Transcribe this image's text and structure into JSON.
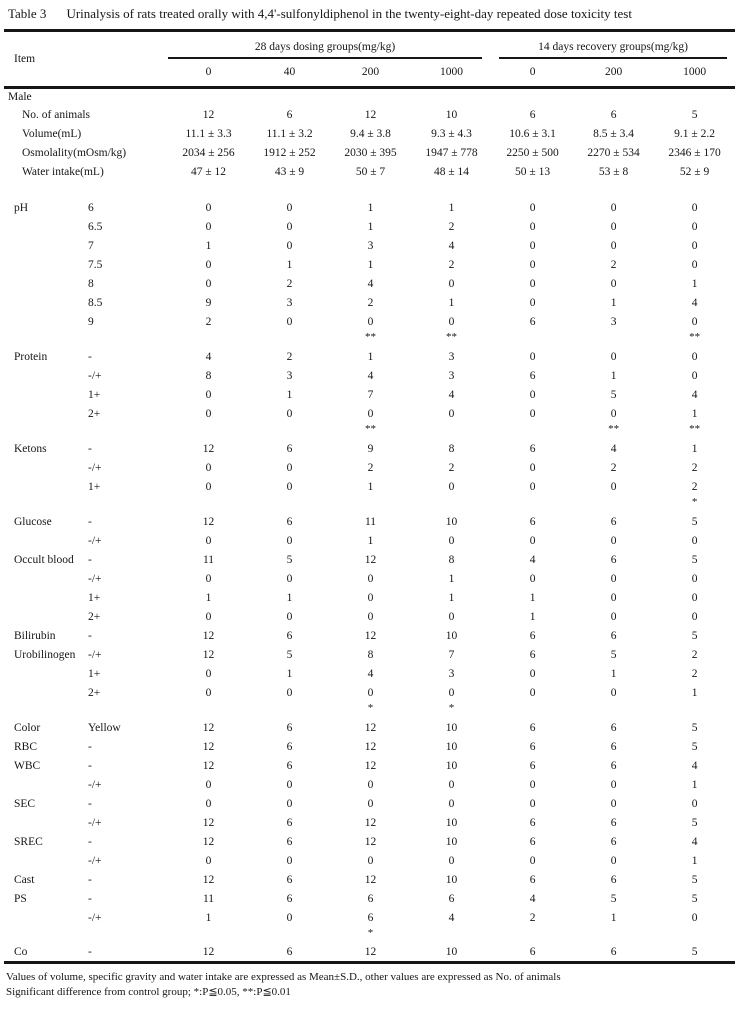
{
  "title": {
    "label": "Table 3",
    "text": "Urinalysis of rats treated orally with 4,4'-sulfonyldiphenol in the twenty-eight-day repeated dose toxicity test"
  },
  "header": {
    "item_label": "Item",
    "groups": [
      {
        "label": "28 days dosing groups(mg/kg)",
        "doses": [
          "0",
          "40",
          "200",
          "1000"
        ]
      },
      {
        "label": "14 days recovery groups(mg/kg)",
        "doses": [
          "0",
          "200",
          "1000"
        ]
      }
    ]
  },
  "rows": [
    {
      "type": "section",
      "item": "Male"
    },
    {
      "type": "data",
      "ind": true,
      "item": "No. of animals",
      "sub": "",
      "values": [
        "12",
        "6",
        "12",
        "10",
        "6",
        "6",
        "5"
      ]
    },
    {
      "type": "data",
      "ind": true,
      "item": "Volume(mL)",
      "sub": "",
      "values": [
        "11.1 ± 3.3",
        "11.1 ± 3.2",
        "9.4 ± 3.8",
        "9.3 ± 4.3",
        "10.6 ± 3.1",
        "8.5 ± 3.4",
        "9.1 ± 2.2"
      ]
    },
    {
      "type": "data",
      "ind": true,
      "item": "Osmolality(mOsm/kg)",
      "sub": "",
      "values": [
        "2034 ± 256",
        "1912 ± 252",
        "2030 ± 395",
        "1947 ± 778",
        "2250 ± 500",
        "2270 ± 534",
        "2346 ± 170"
      ]
    },
    {
      "type": "data",
      "ind": true,
      "item": "Water intake(mL)",
      "sub": "",
      "values": [
        "47 ± 12",
        "43 ± 9",
        "50 ± 7",
        "48 ± 14",
        "50 ± 13",
        "53 ± 8",
        "52 ± 9"
      ]
    },
    {
      "type": "spacer"
    },
    {
      "type": "data",
      "item": "pH",
      "sub": "6",
      "values": [
        "0",
        "0",
        "1",
        "1",
        "0",
        "0",
        "0"
      ]
    },
    {
      "type": "data",
      "item": "",
      "sub": "6.5",
      "values": [
        "0",
        "0",
        "1",
        "2",
        "0",
        "0",
        "0"
      ]
    },
    {
      "type": "data",
      "item": "",
      "sub": "7",
      "values": [
        "1",
        "0",
        "3",
        "4",
        "0",
        "0",
        "0"
      ]
    },
    {
      "type": "data",
      "item": "",
      "sub": "7.5",
      "values": [
        "0",
        "1",
        "1",
        "2",
        "0",
        "2",
        "0"
      ]
    },
    {
      "type": "data",
      "item": "",
      "sub": "8",
      "values": [
        "0",
        "2",
        "4",
        "0",
        "0",
        "0",
        "1"
      ]
    },
    {
      "type": "data",
      "item": "",
      "sub": "8.5",
      "values": [
        "9",
        "3",
        "2",
        "1",
        "0",
        "1",
        "4"
      ]
    },
    {
      "type": "data",
      "item": "",
      "sub": "9",
      "values": [
        "2",
        "0",
        "0",
        "0",
        "6",
        "3",
        "0"
      ]
    },
    {
      "type": "sig",
      "item": "",
      "sub": "",
      "values": [
        "",
        "",
        "**",
        "**",
        "",
        "",
        "**"
      ]
    },
    {
      "type": "data",
      "item": "Protein",
      "sub": "-",
      "values": [
        "4",
        "2",
        "1",
        "3",
        "0",
        "0",
        "0"
      ]
    },
    {
      "type": "data",
      "item": "",
      "sub": "-/+",
      "values": [
        "8",
        "3",
        "4",
        "3",
        "6",
        "1",
        "0"
      ]
    },
    {
      "type": "data",
      "item": "",
      "sub": "1+",
      "values": [
        "0",
        "1",
        "7",
        "4",
        "0",
        "5",
        "4"
      ]
    },
    {
      "type": "data",
      "item": "",
      "sub": "2+",
      "values": [
        "0",
        "0",
        "0",
        "0",
        "0",
        "0",
        "1"
      ]
    },
    {
      "type": "sig",
      "item": "",
      "sub": "",
      "values": [
        "",
        "",
        "**",
        "",
        "",
        "**",
        "**"
      ]
    },
    {
      "type": "data",
      "item": "Ketons",
      "sub": "-",
      "values": [
        "12",
        "6",
        "9",
        "8",
        "6",
        "4",
        "1"
      ]
    },
    {
      "type": "data",
      "item": "",
      "sub": "-/+",
      "values": [
        "0",
        "0",
        "2",
        "2",
        "0",
        "2",
        "2"
      ]
    },
    {
      "type": "data",
      "item": "",
      "sub": "1+",
      "values": [
        "0",
        "0",
        "1",
        "0",
        "0",
        "0",
        "2"
      ]
    },
    {
      "type": "sig",
      "item": "",
      "sub": "",
      "values": [
        "",
        "",
        "",
        "",
        "",
        "",
        "*"
      ]
    },
    {
      "type": "data",
      "item": "Glucose",
      "sub": "-",
      "values": [
        "12",
        "6",
        "11",
        "10",
        "6",
        "6",
        "5"
      ]
    },
    {
      "type": "data",
      "item": "",
      "sub": "-/+",
      "values": [
        "0",
        "0",
        "1",
        "0",
        "0",
        "0",
        "0"
      ]
    },
    {
      "type": "data",
      "item": "Occult blood",
      "sub": "-",
      "values": [
        "11",
        "5",
        "12",
        "8",
        "4",
        "6",
        "5"
      ]
    },
    {
      "type": "data",
      "item": "",
      "sub": "-/+",
      "values": [
        "0",
        "0",
        "0",
        "1",
        "0",
        "0",
        "0"
      ]
    },
    {
      "type": "data",
      "item": "",
      "sub": "1+",
      "values": [
        "1",
        "1",
        "0",
        "1",
        "1",
        "0",
        "0"
      ]
    },
    {
      "type": "data",
      "item": "",
      "sub": "2+",
      "values": [
        "0",
        "0",
        "0",
        "0",
        "1",
        "0",
        "0"
      ]
    },
    {
      "type": "data",
      "item": "Bilirubin",
      "sub": "-",
      "values": [
        "12",
        "6",
        "12",
        "10",
        "6",
        "6",
        "5"
      ]
    },
    {
      "type": "data",
      "item": "Urobilinogen",
      "sub": "-/+",
      "values": [
        "12",
        "5",
        "8",
        "7",
        "6",
        "5",
        "2"
      ]
    },
    {
      "type": "data",
      "item": "",
      "sub": "1+",
      "values": [
        "0",
        "1",
        "4",
        "3",
        "0",
        "1",
        "2"
      ]
    },
    {
      "type": "data",
      "item": "",
      "sub": "2+",
      "values": [
        "0",
        "0",
        "0",
        "0",
        "0",
        "0",
        "1"
      ]
    },
    {
      "type": "sig",
      "item": "",
      "sub": "",
      "values": [
        "",
        "",
        "*",
        "*",
        "",
        "",
        ""
      ]
    },
    {
      "type": "data",
      "item": "Color",
      "sub": "Yellow",
      "values": [
        "12",
        "6",
        "12",
        "10",
        "6",
        "6",
        "5"
      ]
    },
    {
      "type": "data",
      "item": "RBC",
      "sub": "-",
      "values": [
        "12",
        "6",
        "12",
        "10",
        "6",
        "6",
        "5"
      ]
    },
    {
      "type": "data",
      "item": "WBC",
      "sub": "-",
      "values": [
        "12",
        "6",
        "12",
        "10",
        "6",
        "6",
        "4"
      ]
    },
    {
      "type": "data",
      "item": "",
      "sub": "-/+",
      "values": [
        "0",
        "0",
        "0",
        "0",
        "0",
        "0",
        "1"
      ]
    },
    {
      "type": "data",
      "item": "SEC",
      "sub": "-",
      "values": [
        "0",
        "0",
        "0",
        "0",
        "0",
        "0",
        "0"
      ]
    },
    {
      "type": "data",
      "item": "",
      "sub": "-/+",
      "values": [
        "12",
        "6",
        "12",
        "10",
        "6",
        "6",
        "5"
      ]
    },
    {
      "type": "data",
      "item": "SREC",
      "sub": "-",
      "values": [
        "12",
        "6",
        "12",
        "10",
        "6",
        "6",
        "4"
      ]
    },
    {
      "type": "data",
      "item": "",
      "sub": "-/+",
      "values": [
        "0",
        "0",
        "0",
        "0",
        "0",
        "0",
        "1"
      ]
    },
    {
      "type": "data",
      "item": "Cast",
      "sub": "-",
      "values": [
        "12",
        "6",
        "12",
        "10",
        "6",
        "6",
        "5"
      ]
    },
    {
      "type": "data",
      "item": "PS",
      "sub": "-",
      "values": [
        "11",
        "6",
        "6",
        "6",
        "4",
        "5",
        "5"
      ]
    },
    {
      "type": "data",
      "item": "",
      "sub": "-/+",
      "values": [
        "1",
        "0",
        "6",
        "4",
        "2",
        "1",
        "0"
      ]
    },
    {
      "type": "sig",
      "item": "",
      "sub": "",
      "values": [
        "",
        "",
        "*",
        "",
        "",
        "",
        ""
      ]
    },
    {
      "type": "data",
      "item": "Co",
      "sub": "-",
      "values": [
        "12",
        "6",
        "12",
        "10",
        "6",
        "6",
        "5"
      ]
    }
  ],
  "footnotes": [
    "Values of volume, specific gravity and water intake are expressed as Mean±S.D., other values are expressed as No. of animals",
    "Significant difference from control group; *:P≦0.05, **:P≦0.01"
  ]
}
